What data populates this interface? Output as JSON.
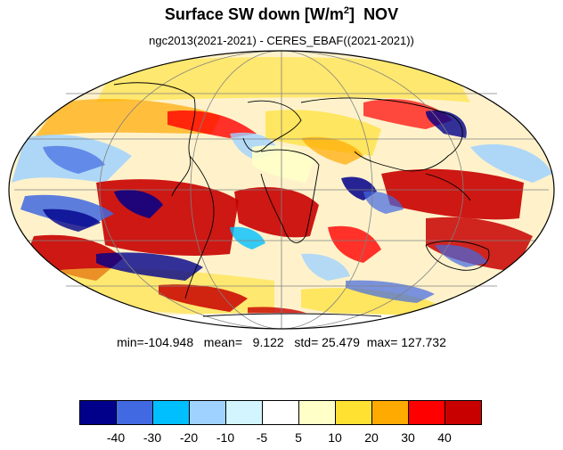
{
  "title": {
    "main": "Surface SW down [W/m",
    "sup": "2",
    "close": "]",
    "month": "NOV"
  },
  "subtitle": "ngc2013(2021-2021) - CERES_EBAF((2021-2021))",
  "stats": {
    "min_label": "min=",
    "min": "-104.948",
    "mean_label": "mean=",
    "mean": "9.122",
    "std_label": "std=",
    "std": "25.479",
    "max_label": "max=",
    "max": "127.732"
  },
  "colorbar": {
    "colors": [
      "#00008b",
      "#4169e1",
      "#00bfff",
      "#a0d2ff",
      "#d2f5ff",
      "#ffffff",
      "#ffffc8",
      "#ffe132",
      "#ffaa00",
      "#ff0000",
      "#c80000"
    ],
    "labels": [
      "-40",
      "-30",
      "-20",
      "-10",
      "-5",
      "5",
      "10",
      "20",
      "30",
      "40"
    ]
  },
  "map": {
    "projection": "Mollweide",
    "grid": true,
    "coastlines": true
  }
}
